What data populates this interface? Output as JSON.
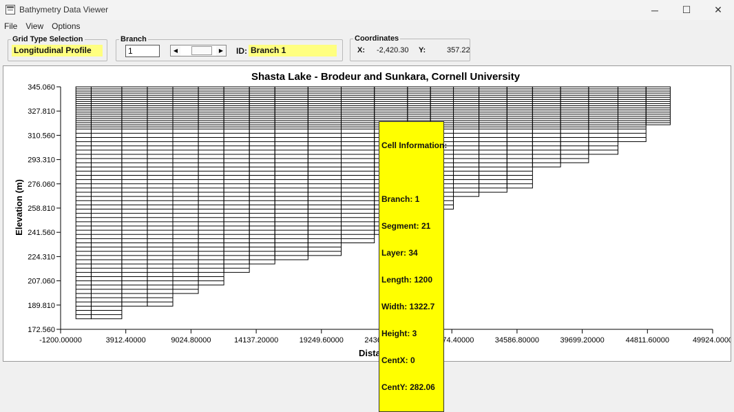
{
  "window": {
    "title": "Bathymetry Data Viewer",
    "minimize_glyph": "─",
    "maximize_glyph": "☐",
    "close_glyph": "✕"
  },
  "menu": {
    "items": [
      "File",
      "View",
      "Options"
    ]
  },
  "grid_type": {
    "label": "Grid Type Selection",
    "value": "Longitudinal Profile"
  },
  "branch": {
    "label": "Branch",
    "value": "1",
    "id_label": "ID:",
    "id_value": "Branch  1"
  },
  "coordinates": {
    "label": "Coordinates",
    "x_label": "X:",
    "x_value": "-2,420.30",
    "y_label": "Y:",
    "y_value": "357.22"
  },
  "chart_data": {
    "type": "bar",
    "title": "Shasta Lake - Brodeur and Sunkara, Cornell University",
    "xlabel": "Distance (m)",
    "ylabel": "Elevation (m)",
    "xlim": [
      -1200,
      49924
    ],
    "ylim": [
      172.56,
      345.06
    ],
    "x_ticks": [
      "-1200.00000",
      "3912.40000",
      "9024.80000",
      "14137.20000",
      "19249.60000",
      "24362.00000",
      "29474.40000",
      "34586.80000",
      "39699.20000",
      "44811.60000",
      "49924.0000"
    ],
    "y_ticks": [
      "172.560",
      "189.810",
      "207.060",
      "224.310",
      "241.560",
      "258.810",
      "276.060",
      "293.310",
      "310.560",
      "327.810",
      "345.060"
    ],
    "layer_top": 345.06,
    "layer_height": 3,
    "layer_transition": 315.06,
    "layer_height_upper": 1.5,
    "segment_width": 1200,
    "segments": [
      {
        "x_start": 0,
        "x_end": 1200,
        "bottom": 180.06
      },
      {
        "x_start": 1200,
        "x_end": 3600,
        "bottom": 180.06
      },
      {
        "x_start": 3600,
        "x_end": 5600,
        "bottom": 189.06
      },
      {
        "x_start": 5600,
        "x_end": 7600,
        "bottom": 189.06
      },
      {
        "x_start": 7600,
        "x_end": 9600,
        "bottom": 198.06
      },
      {
        "x_start": 9600,
        "x_end": 11600,
        "bottom": 204.06
      },
      {
        "x_start": 11600,
        "x_end": 13600,
        "bottom": 213.06
      },
      {
        "x_start": 13600,
        "x_end": 15600,
        "bottom": 219.06
      },
      {
        "x_start": 15600,
        "x_end": 18200,
        "bottom": 222.06
      },
      {
        "x_start": 18200,
        "x_end": 20800,
        "bottom": 225.06
      },
      {
        "x_start": 20800,
        "x_end": 23400,
        "bottom": 234.06
      },
      {
        "x_start": 23400,
        "x_end": 26000,
        "bottom": 240.06
      },
      {
        "x_start": 26000,
        "x_end": 27800,
        "bottom": 249.06
      },
      {
        "x_start": 27800,
        "x_end": 29600,
        "bottom": 258.06
      },
      {
        "x_start": 29600,
        "x_end": 31600,
        "bottom": 267.06
      },
      {
        "x_start": 31600,
        "x_end": 33800,
        "bottom": 270.06
      },
      {
        "x_start": 33800,
        "x_end": 35800,
        "bottom": 273.06
      },
      {
        "x_start": 35800,
        "x_end": 38000,
        "bottom": 288.06
      },
      {
        "x_start": 38000,
        "x_end": 40200,
        "bottom": 291.06
      },
      {
        "x_start": 40200,
        "x_end": 42500,
        "bottom": 297.06
      },
      {
        "x_start": 42500,
        "x_end": 44700,
        "bottom": 306.06
      },
      {
        "x_start": 44700,
        "x_end": 46600,
        "bottom": 318.06
      }
    ],
    "grid": false
  },
  "cell_info": {
    "header": "Cell Information:",
    "lines": [
      "Branch: 1",
      "Segment: 21",
      "Layer: 34",
      "Length: 1200",
      "Width: 1322.7",
      "Height: 3",
      "CentX: 0",
      "CentY: 282.06"
    ]
  }
}
